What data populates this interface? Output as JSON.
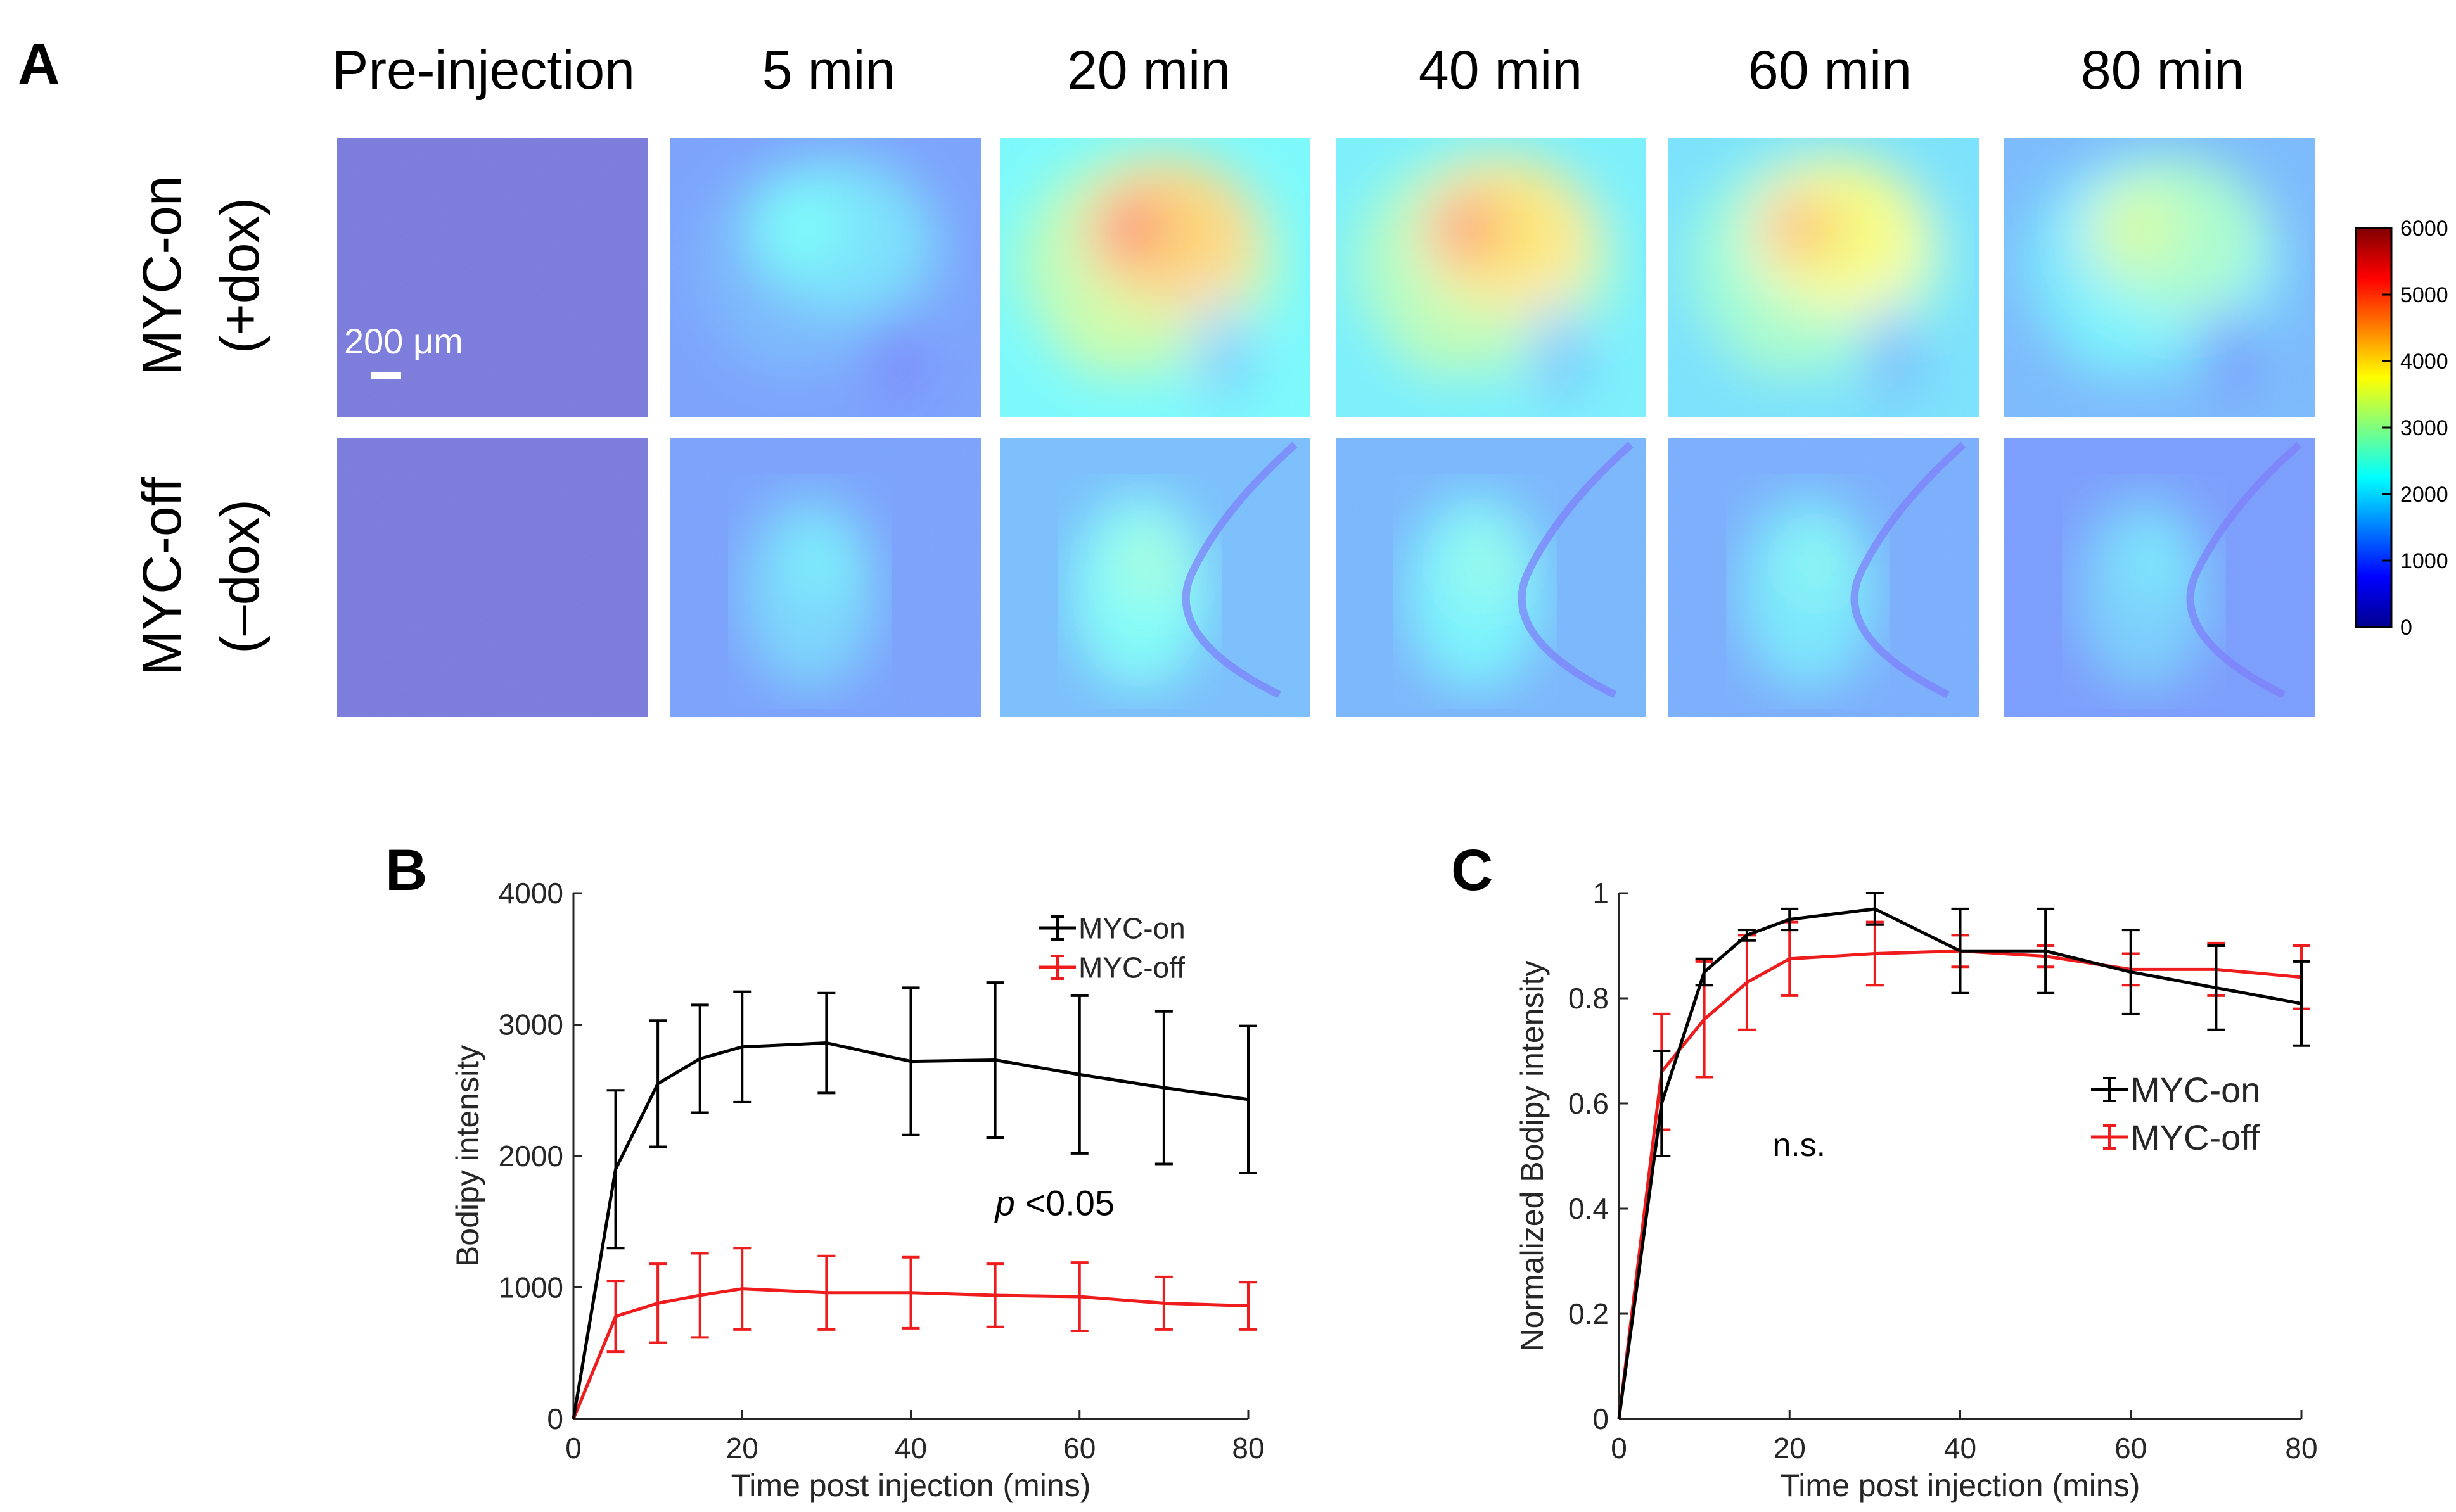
{
  "panel_a": {
    "letter": "A",
    "columns": [
      "Pre-injection",
      "5 min",
      "20 min",
      "40 min",
      "60 min",
      "80 min"
    ],
    "rows": [
      {
        "line1": "MYC-on",
        "line2": "(+dox)"
      },
      {
        "line1": "MYC-off",
        "line2": "(–dox)"
      }
    ],
    "scale_bar": "200 μm",
    "image_levels": [
      [
        0.02,
        0.38,
        0.82,
        0.78,
        0.72,
        0.55
      ],
      [
        0.02,
        0.25,
        0.32,
        0.3,
        0.28,
        0.24
      ]
    ],
    "colorbar": {
      "ticks": [
        0,
        1000,
        2000,
        3000,
        4000,
        5000,
        6000
      ],
      "tick_labels": [
        "0",
        "1000",
        "2000",
        "3000",
        "4000",
        "5000",
        "6000"
      ],
      "range": [
        0,
        6000
      ],
      "colormap": "jet"
    }
  },
  "colors": {
    "myc_on": "#000000",
    "myc_off": "#ee1c1c"
  },
  "chart_data": [
    {
      "id": "B",
      "letter": "B",
      "type": "line",
      "xlabel": "Time post injection (mins)",
      "ylabel": "Bodipy intensity",
      "xlim": [
        0,
        80
      ],
      "ylim": [
        0,
        4000
      ],
      "xticks": [
        0,
        20,
        40,
        60,
        80
      ],
      "yticks": [
        0,
        1000,
        2000,
        3000,
        4000
      ],
      "xtick_labels": [
        "0",
        "20",
        "40",
        "60",
        "80"
      ],
      "ytick_labels": [
        "0",
        "1000",
        "2000",
        "3000",
        "4000"
      ],
      "legend_position": "top-right",
      "annotation": {
        "italic": "p",
        "rest": " <0.05",
        "x": 50,
        "y": 1550
      },
      "series": [
        {
          "name": "MYC-on",
          "x": [
            0,
            5,
            10,
            15,
            20,
            30,
            40,
            50,
            60,
            70,
            80
          ],
          "y": [
            0,
            1900,
            2550,
            2740,
            2830,
            2860,
            2720,
            2730,
            2620,
            2520,
            2430
          ],
          "err": [
            0,
            600,
            480,
            410,
            420,
            380,
            560,
            590,
            600,
            580,
            560
          ]
        },
        {
          "name": "MYC-off",
          "x": [
            0,
            5,
            10,
            15,
            20,
            30,
            40,
            50,
            60,
            70,
            80
          ],
          "y": [
            0,
            780,
            880,
            940,
            990,
            960,
            960,
            940,
            930,
            880,
            860
          ],
          "err": [
            0,
            270,
            300,
            320,
            310,
            280,
            270,
            240,
            260,
            200,
            180
          ]
        }
      ]
    },
    {
      "id": "C",
      "letter": "C",
      "type": "line",
      "xlabel": "Time post injection (mins)",
      "ylabel": "Normalized Bodipy intensity",
      "xlim": [
        0,
        80
      ],
      "ylim": [
        0,
        1
      ],
      "xticks": [
        0,
        20,
        40,
        60,
        80
      ],
      "yticks": [
        0,
        0.2,
        0.4,
        0.6,
        0.8,
        1
      ],
      "xtick_labels": [
        "0",
        "20",
        "40",
        "60",
        "80"
      ],
      "ytick_labels": [
        "0",
        "0.2",
        "0.4",
        "0.6",
        "0.8",
        "1"
      ],
      "legend_position": "center-right",
      "annotation": {
        "italic": "",
        "rest": "n.s.",
        "x": 18,
        "y": 0.5
      },
      "series": [
        {
          "name": "MYC-on",
          "x": [
            0,
            5,
            10,
            15,
            20,
            30,
            40,
            50,
            60,
            70,
            80
          ],
          "y": [
            0,
            0.6,
            0.85,
            0.92,
            0.95,
            0.97,
            0.89,
            0.89,
            0.85,
            0.82,
            0.79
          ],
          "err": [
            0,
            0.1,
            0.025,
            0.01,
            0.02,
            0.03,
            0.08,
            0.08,
            0.08,
            0.08,
            0.08
          ]
        },
        {
          "name": "MYC-off",
          "x": [
            0,
            5,
            10,
            15,
            20,
            30,
            40,
            50,
            60,
            70,
            80
          ],
          "y": [
            0,
            0.66,
            0.76,
            0.83,
            0.875,
            0.885,
            0.89,
            0.88,
            0.855,
            0.855,
            0.84
          ],
          "err": [
            0,
            0.11,
            0.11,
            0.09,
            0.07,
            0.06,
            0.03,
            0.02,
            0.03,
            0.05,
            0.06
          ]
        }
      ]
    }
  ]
}
